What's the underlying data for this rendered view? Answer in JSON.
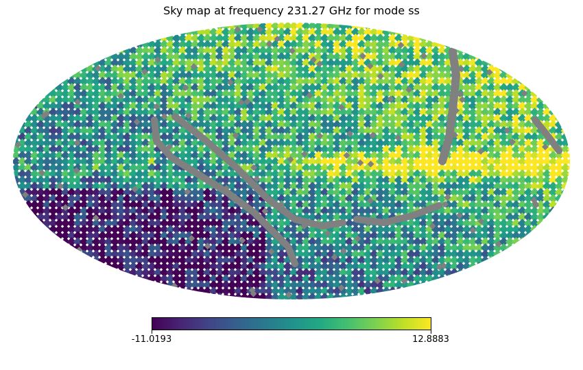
{
  "chart_data": {
    "type": "heatmap",
    "projection": "mollweide",
    "title": "Sky map at frequency 231.27 GHz for mode ss",
    "colormap": "viridis",
    "bad_value_color": "#808080",
    "colorbar": {
      "min": -11.0193,
      "max": 12.8883,
      "min_label": "-11.0193",
      "max_label": "12.8883",
      "orientation": "horizontal",
      "position": "bottom"
    }
  }
}
